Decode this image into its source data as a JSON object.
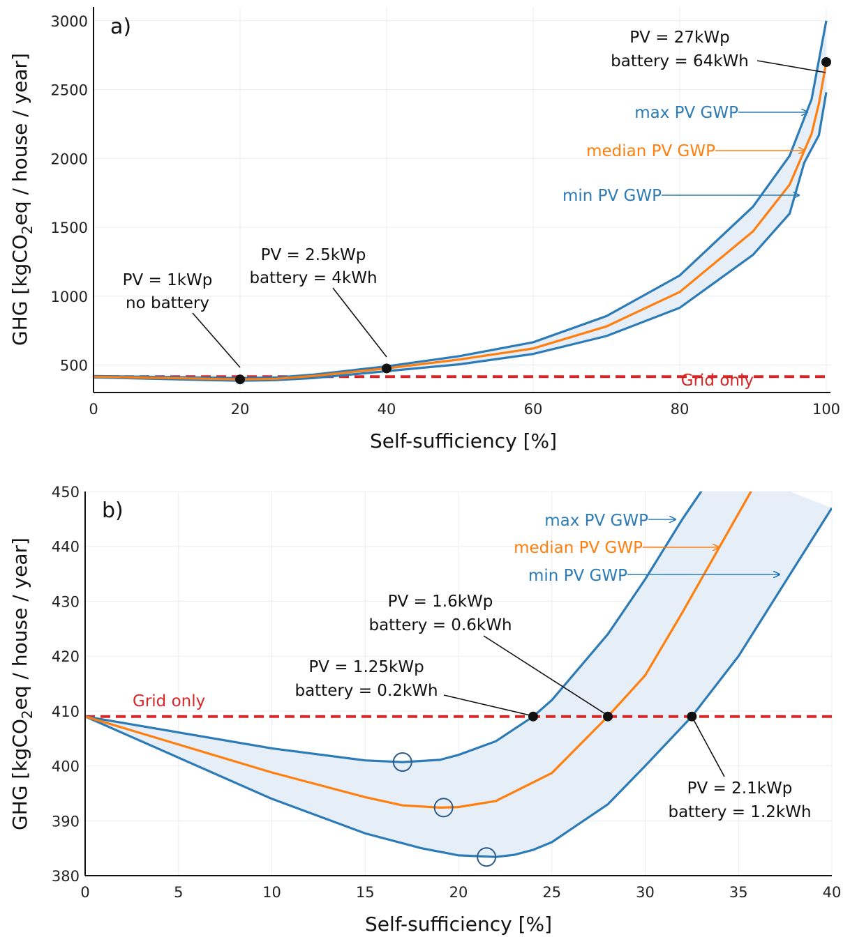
{
  "colors": {
    "max": "#2c7bb6",
    "median": "#ff7f0e",
    "min": "#2c7bb6",
    "band": "#e6eef7",
    "grid_line": "#d62728",
    "grid": "#e8ecf2"
  },
  "chart_data": [
    {
      "type": "line",
      "panel_label": "a)",
      "xlabel": "Self-sufficiency [%]",
      "ylabel_parts": [
        "GHG [kgCO",
        "2",
        "eq / house / year]"
      ],
      "xlim": [
        0,
        100
      ],
      "ylim": [
        300,
        3100
      ],
      "xticks": [
        0,
        20,
        40,
        60,
        80,
        100
      ],
      "yticks": [
        500,
        1000,
        1500,
        2000,
        2500,
        3000
      ],
      "grid": true,
      "series": [
        {
          "name": "max PV GWP",
          "key": "max",
          "x": [
            0,
            20,
            25,
            30,
            40,
            50,
            60,
            70,
            80,
            90,
            95,
            98,
            100
          ],
          "y": [
            420,
            405,
            410,
            430,
            490,
            565,
            665,
            855,
            1150,
            1650,
            2020,
            2430,
            3000
          ]
        },
        {
          "name": "median PV GWP",
          "key": "median",
          "x": [
            0,
            20,
            25,
            30,
            40,
            50,
            60,
            70,
            80,
            90,
            95,
            98,
            99,
            100
          ],
          "y": [
            415,
            395,
            400,
            420,
            475,
            540,
            620,
            780,
            1030,
            1470,
            1810,
            2180,
            2400,
            2700
          ]
        },
        {
          "name": "min PV GWP",
          "key": "min",
          "x": [
            0,
            20,
            25,
            30,
            40,
            50,
            60,
            70,
            80,
            90,
            95,
            97,
            99,
            100
          ],
          "y": [
            410,
            385,
            390,
            405,
            455,
            505,
            580,
            710,
            915,
            1300,
            1600,
            1970,
            2170,
            2480
          ]
        }
      ],
      "reference_line": {
        "label": "Grid only",
        "y": 415
      },
      "labels": {
        "max": "max PV GWP",
        "median": "median PV GWP",
        "min": "min PV GWP"
      },
      "points": [
        {
          "x": 20,
          "y": 395,
          "lines": [
            "PV = 1kWp",
            "no battery"
          ]
        },
        {
          "x": 40,
          "y": 475,
          "lines": [
            "PV = 2.5kWp",
            "battery = 4kWh"
          ]
        },
        {
          "x": 100,
          "y": 2700,
          "lines": [
            "PV = 27kWp",
            "battery = 64kWh"
          ]
        }
      ],
      "minima": []
    },
    {
      "type": "line",
      "panel_label": "b)",
      "xlabel": "Self-sufficiency [%]",
      "ylabel_parts": [
        "GHG [kgCO",
        "2",
        "eq / house / year]"
      ],
      "xlim": [
        0,
        40
      ],
      "ylim": [
        380,
        450
      ],
      "xticks": [
        0,
        5,
        10,
        15,
        20,
        25,
        30,
        35,
        40
      ],
      "yticks": [
        380,
        390,
        400,
        410,
        420,
        430,
        440,
        450
      ],
      "grid": true,
      "series": [
        {
          "name": "max PV GWP",
          "key": "max",
          "x": [
            0,
            10,
            15,
            17,
            19,
            20,
            22,
            24,
            25,
            28,
            30,
            32,
            34
          ],
          "y": [
            409,
            403.2,
            401,
            400.7,
            401.1,
            402,
            404.5,
            409,
            412,
            424,
            434,
            445,
            455
          ]
        },
        {
          "name": "median PV GWP",
          "key": "median",
          "x": [
            0,
            10,
            15,
            17,
            19,
            20,
            22,
            25,
            28,
            30,
            32,
            34,
            36
          ],
          "y": [
            409,
            398.8,
            394.3,
            392.8,
            392.4,
            392.5,
            393.6,
            398.7,
            409,
            416.5,
            428,
            440,
            452
          ]
        },
        {
          "name": "min PV GWP",
          "key": "min",
          "x": [
            0,
            10,
            15,
            18,
            20,
            22,
            23,
            24,
            25,
            28,
            30,
            32.5,
            35,
            40
          ],
          "y": [
            409,
            394,
            387.7,
            385,
            383.7,
            383.4,
            383.8,
            384.7,
            386.1,
            393,
            400,
            409,
            420,
            447
          ]
        }
      ],
      "reference_line": {
        "label": "Grid only",
        "y": 409
      },
      "labels": {
        "max": "max PV GWP",
        "median": "median PV GWP",
        "min": "min PV GWP"
      },
      "points": [
        {
          "x": 24,
          "y": 409,
          "lines": [
            "PV = 1.25kWp",
            "battery = 0.2kWh"
          ]
        },
        {
          "x": 28,
          "y": 409,
          "lines": [
            "PV = 1.6kWp",
            "battery = 0.6kWh"
          ]
        },
        {
          "x": 32.5,
          "y": 409,
          "lines": [
            "PV = 2.1kWp",
            "battery = 1.2kWh"
          ]
        }
      ],
      "minima": [
        {
          "x": 17,
          "y": 400.7
        },
        {
          "x": 19.2,
          "y": 392.4
        },
        {
          "x": 21.5,
          "y": 383.4
        }
      ]
    }
  ]
}
